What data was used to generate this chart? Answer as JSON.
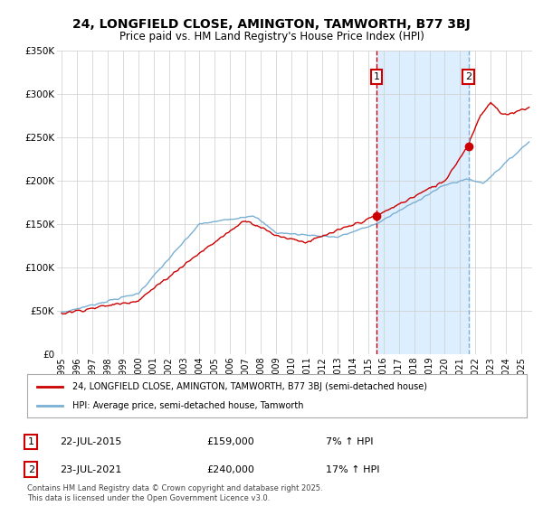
{
  "title": "24, LONGFIELD CLOSE, AMINGTON, TAMWORTH, B77 3BJ",
  "subtitle": "Price paid vs. HM Land Registry's House Price Index (HPI)",
  "legend_line1": "24, LONGFIELD CLOSE, AMINGTON, TAMWORTH, B77 3BJ (semi-detached house)",
  "legend_line2": "HPI: Average price, semi-detached house, Tamworth",
  "sale1_date": 2015.55,
  "sale1_price": 159000,
  "sale1_label": "1",
  "sale1_text": "22-JUL-2015",
  "sale1_pct": "7% ↑ HPI",
  "sale2_date": 2021.55,
  "sale2_price": 240000,
  "sale2_label": "2",
  "sale2_text": "23-JUL-2021",
  "sale2_pct": "17% ↑ HPI",
  "footer": "Contains HM Land Registry data © Crown copyright and database right 2025.\nThis data is licensed under the Open Government Licence v3.0.",
  "line_color_red": "#cc0000",
  "line_color_blue": "#7ab0d4",
  "vline1_color": "#cc0000",
  "vline2_color": "#7ab0d4",
  "vline_style": "--",
  "shade_color": "#ddeeff",
  "marker_box_color": "#cc0000",
  "ylim": [
    0,
    350000
  ],
  "xlim_start": 1994.7,
  "xlim_end": 2025.7,
  "background_color": "#ffffff",
  "grid_color": "#cccccc",
  "title_fontsize": 10,
  "subtitle_fontsize": 8.5,
  "ylabel_ticks": [
    0,
    50000,
    100000,
    150000,
    200000,
    250000,
    300000,
    350000
  ],
  "ylabel_labels": [
    "£0",
    "£50K",
    "£100K",
    "£150K",
    "£200K",
    "£250K",
    "£300K",
    "£350K"
  ],
  "xticks": [
    1995,
    1996,
    1997,
    1998,
    1999,
    2000,
    2001,
    2002,
    2003,
    2004,
    2005,
    2006,
    2007,
    2008,
    2009,
    2010,
    2011,
    2012,
    2013,
    2014,
    2015,
    2016,
    2017,
    2018,
    2019,
    2020,
    2021,
    2022,
    2023,
    2024,
    2025
  ]
}
